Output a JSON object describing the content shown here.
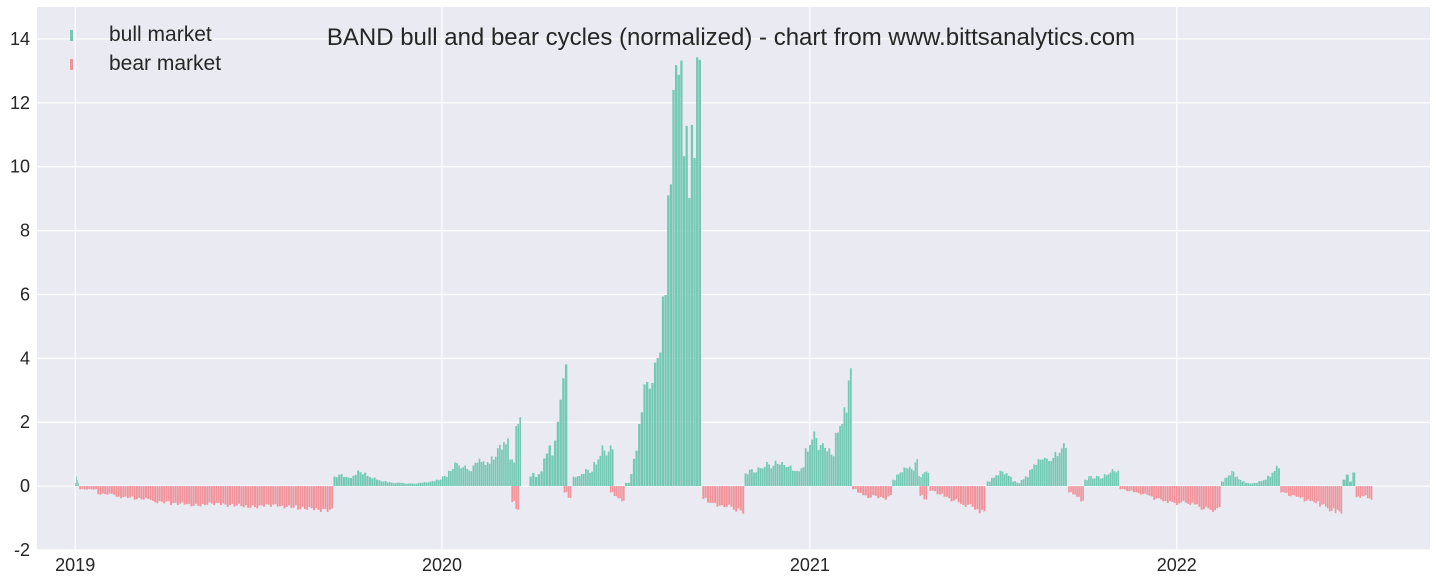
{
  "chart_data": {
    "type": "bar",
    "title": "BAND bull and bear cycles (normalized)  - chart from www.bittsanalytics.com",
    "xlabel": "",
    "ylabel": "",
    "ylim": [
      -2,
      15
    ],
    "yticks": [
      -2,
      0,
      2,
      4,
      6,
      8,
      10,
      12,
      14
    ],
    "xlim": [
      "2018-11-24",
      "2022-09-10"
    ],
    "xticks": [
      {
        "label": "2019",
        "date": "2019-01-01"
      },
      {
        "label": "2020",
        "date": "2020-01-01"
      },
      {
        "label": "2021",
        "date": "2021-01-01"
      },
      {
        "label": "2022",
        "date": "2022-01-01"
      }
    ],
    "grid": true,
    "legend": {
      "position": "top-left",
      "entries": [
        {
          "label": "bull market",
          "color": "#74c9b5"
        },
        {
          "label": "bear market",
          "color": "#f0939b"
        }
      ]
    },
    "colors": {
      "bull": "#74c9b5",
      "bear": "#f0939b",
      "background": "#eaeaf2",
      "grid": "#ffffff"
    },
    "series": [
      {
        "name": "bull market",
        "segments": [
          {
            "start": "2019-01-01",
            "end": "2019-01-05",
            "values": [
              0.1,
              0.3,
              0.2,
              0.1
            ]
          },
          {
            "start": "2019-09-15",
            "end": "2019-11-01",
            "values": [
              0.3,
              0.35,
              0.3,
              0.25,
              0.35,
              0.45,
              0.4,
              0.3,
              0.25,
              0.2
            ]
          },
          {
            "start": "2019-11-01",
            "end": "2020-03-20",
            "values": [
              0.15,
              0.12,
              0.1,
              0.1,
              0.08,
              0.08,
              0.1,
              0.12,
              0.15,
              0.2,
              0.3,
              0.5,
              0.7,
              0.6,
              0.5,
              0.7,
              0.8,
              0.7,
              0.9,
              1.2,
              1.4,
              0.8,
              2.0
            ]
          },
          {
            "start": "2020-03-28",
            "end": "2020-05-05",
            "values": [
              0.3,
              0.4,
              0.3,
              0.35,
              0.5,
              0.8,
              1.1,
              1.2,
              1.0,
              1.4,
              2.0,
              2.8,
              3.2,
              4.1
            ]
          },
          {
            "start": "2020-05-10",
            "end": "2020-06-20",
            "values": [
              0.3,
              0.3,
              0.4,
              0.5,
              0.45,
              0.7,
              0.9,
              1.2,
              1.0,
              1.25
            ]
          },
          {
            "start": "2020-07-01",
            "end": "2020-09-15",
            "values": [
              0.1,
              0.1,
              0.4,
              0.8,
              1.2,
              1.8,
              2.5,
              3.0,
              3.4,
              3.0,
              3.2,
              4.0,
              3.8,
              4.5,
              5.5,
              6.5,
              8.5,
              10.0,
              12.0,
              13.3,
              13.1,
              12.8,
              11.0,
              10.5,
              9.8,
              10.5,
              11.0,
              12.8,
              13.7
            ]
          },
          {
            "start": "2020-10-28",
            "end": "2021-02-12",
            "values": [
              0.4,
              0.5,
              0.45,
              0.55,
              0.6,
              0.7,
              0.6,
              0.75,
              0.7,
              0.65,
              0.6,
              0.5,
              0.45,
              0.6,
              1.1,
              1.4,
              1.6,
              1.2,
              1.3,
              1.1,
              1.0,
              1.6,
              2.0,
              2.3,
              3.6
            ]
          },
          {
            "start": "2021-03-24",
            "end": "2021-04-30",
            "values": [
              0.2,
              0.35,
              0.45,
              0.55,
              0.6,
              0.5,
              0.8,
              0.3,
              0.4,
              0.45
            ]
          },
          {
            "start": "2021-06-26",
            "end": "2021-09-14",
            "values": [
              0.15,
              0.25,
              0.35,
              0.45,
              0.4,
              0.3,
              0.15,
              0.1,
              0.2,
              0.3,
              0.5,
              0.7,
              0.8,
              0.9,
              0.8,
              0.85,
              1.0,
              1.1,
              1.3
            ]
          },
          {
            "start": "2021-10-01",
            "end": "2021-11-05",
            "values": [
              0.2,
              0.3,
              0.25,
              0.3,
              0.25,
              0.35,
              0.4,
              0.5,
              0.45
            ]
          },
          {
            "start": "2022-02-14",
            "end": "2022-03-10",
            "values": [
              0.15,
              0.25,
              0.35,
              0.45,
              0.3,
              0.2,
              0.15
            ]
          },
          {
            "start": "2022-03-10",
            "end": "2022-04-14",
            "values": [
              0.1,
              0.08,
              0.1,
              0.15,
              0.2,
              0.3,
              0.45,
              0.6
            ]
          },
          {
            "start": "2022-06-15",
            "end": "2022-06-28",
            "values": [
              0.2,
              0.35,
              0.15,
              0.4
            ]
          }
        ]
      },
      {
        "name": "bear market",
        "segments": [
          {
            "start": "2019-01-05",
            "end": "2019-09-15",
            "values": [
              -0.1,
              -0.25,
              -0.35,
              -0.4,
              -0.5,
              -0.55,
              -0.6,
              -0.55,
              -0.6,
              -0.65,
              -0.6,
              -0.65,
              -0.7,
              -0.75
            ]
          },
          {
            "start": "2020-03-10",
            "end": "2020-03-18",
            "values": [
              -0.5,
              -0.7
            ]
          },
          {
            "start": "2020-05-01",
            "end": "2020-05-09",
            "values": [
              -0.2,
              -0.35
            ]
          },
          {
            "start": "2020-06-16",
            "end": "2020-07-01",
            "values": [
              -0.2,
              -0.3,
              -0.4,
              -0.45
            ]
          },
          {
            "start": "2020-09-16",
            "end": "2020-10-28",
            "values": [
              -0.4,
              -0.5,
              -0.55,
              -0.6,
              -0.65,
              -0.6,
              -0.7,
              -0.75,
              -0.8
            ]
          },
          {
            "start": "2021-02-12",
            "end": "2021-03-24",
            "values": [
              -0.1,
              -0.2,
              -0.3,
              -0.35,
              -0.3,
              -0.35,
              -0.4,
              -0.3
            ]
          },
          {
            "start": "2021-04-20",
            "end": "2021-04-28",
            "values": [
              -0.3,
              -0.4
            ]
          },
          {
            "start": "2021-04-30",
            "end": "2021-06-25",
            "values": [
              -0.15,
              -0.25,
              -0.35,
              -0.45,
              -0.55,
              -0.6,
              -0.7,
              -0.8
            ]
          },
          {
            "start": "2021-09-15",
            "end": "2021-10-01",
            "values": [
              -0.2,
              -0.25,
              -0.35,
              -0.45
            ]
          },
          {
            "start": "2021-11-05",
            "end": "2022-02-14",
            "values": [
              -0.1,
              -0.15,
              -0.2,
              -0.25,
              -0.3,
              -0.4,
              -0.45,
              -0.5,
              -0.55,
              -0.5,
              -0.55,
              -0.6,
              -0.7,
              -0.75,
              -0.7
            ]
          },
          {
            "start": "2022-04-14",
            "end": "2022-06-15",
            "values": [
              -0.2,
              -0.3,
              -0.35,
              -0.45,
              -0.5,
              -0.6,
              -0.75,
              -0.8
            ]
          },
          {
            "start": "2022-06-28",
            "end": "2022-07-15",
            "values": [
              -0.35,
              -0.3,
              -0.4
            ]
          }
        ]
      }
    ]
  }
}
